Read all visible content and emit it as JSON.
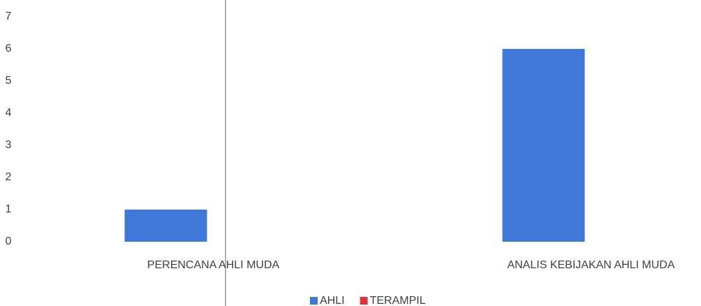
{
  "chart_data": {
    "type": "bar",
    "categories": [
      "PERENCANA AHLI MUDA",
      "ANALIS KEBIJAKAN AHLI MUDA"
    ],
    "series": [
      {
        "name": "AHLI",
        "color": "#3f78d8",
        "values": [
          1,
          6
        ]
      },
      {
        "name": "TERAMPIL",
        "color": "#e0303a",
        "values": [
          0,
          0
        ]
      }
    ],
    "ylim": [
      0,
      7
    ],
    "yticks": [
      0,
      1,
      2,
      3,
      4,
      5,
      6,
      7
    ],
    "grid": false,
    "legend": "bottom"
  }
}
